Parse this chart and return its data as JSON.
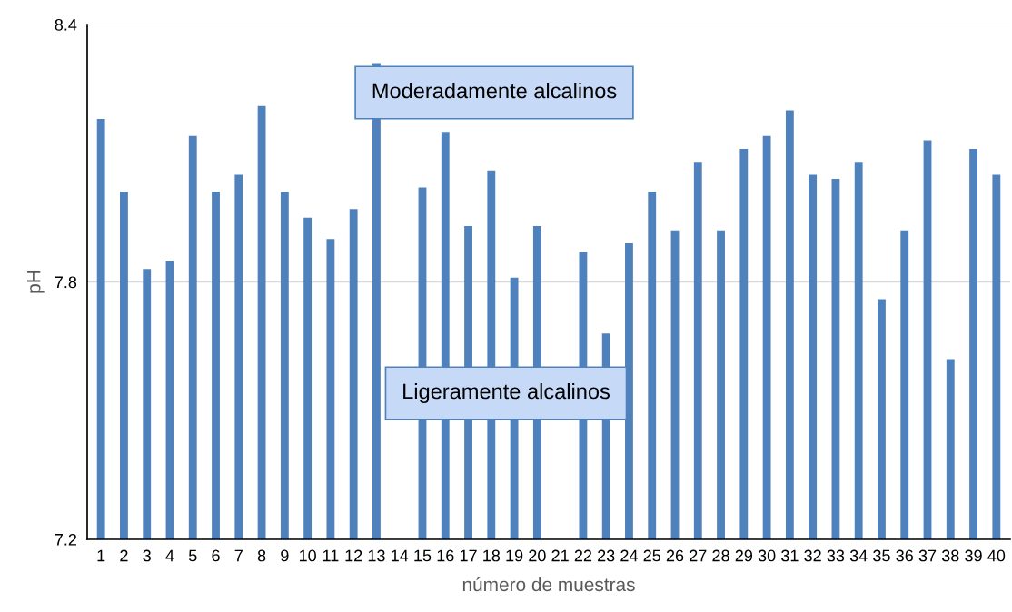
{
  "chart_data": {
    "type": "bar",
    "xlabel": "número de muestras",
    "ylabel": "pH",
    "categories": [
      "1",
      "2",
      "3",
      "4",
      "5",
      "6",
      "7",
      "8",
      "9",
      "10",
      "11",
      "12",
      "13",
      "14",
      "15",
      "16",
      "17",
      "18",
      "19",
      "20",
      "21",
      "22",
      "23",
      "24",
      "25",
      "26",
      "27",
      "28",
      "29",
      "30",
      "31",
      "32",
      "33",
      "34",
      "35",
      "36",
      "37",
      "38",
      "39",
      "40"
    ],
    "values": [
      8.18,
      8.01,
      7.83,
      7.85,
      8.14,
      8.01,
      8.05,
      8.21,
      8.01,
      7.95,
      7.9,
      7.97,
      8.31,
      null,
      8.02,
      8.15,
      7.93,
      8.06,
      7.81,
      7.93,
      null,
      7.87,
      7.68,
      7.89,
      8.01,
      7.92,
      8.08,
      7.92,
      8.11,
      8.14,
      8.2,
      8.05,
      8.04,
      8.08,
      7.76,
      7.92,
      8.13,
      7.62,
      8.11,
      8.05
    ],
    "color": "#4f81bd",
    "ylim": [
      7.2,
      8.4
    ],
    "yticks": [
      7.2,
      7.8,
      8.4
    ],
    "grid": "y",
    "annotations": [
      "Moderadamente alcalinos",
      "Ligeramente alcalinos"
    ]
  }
}
